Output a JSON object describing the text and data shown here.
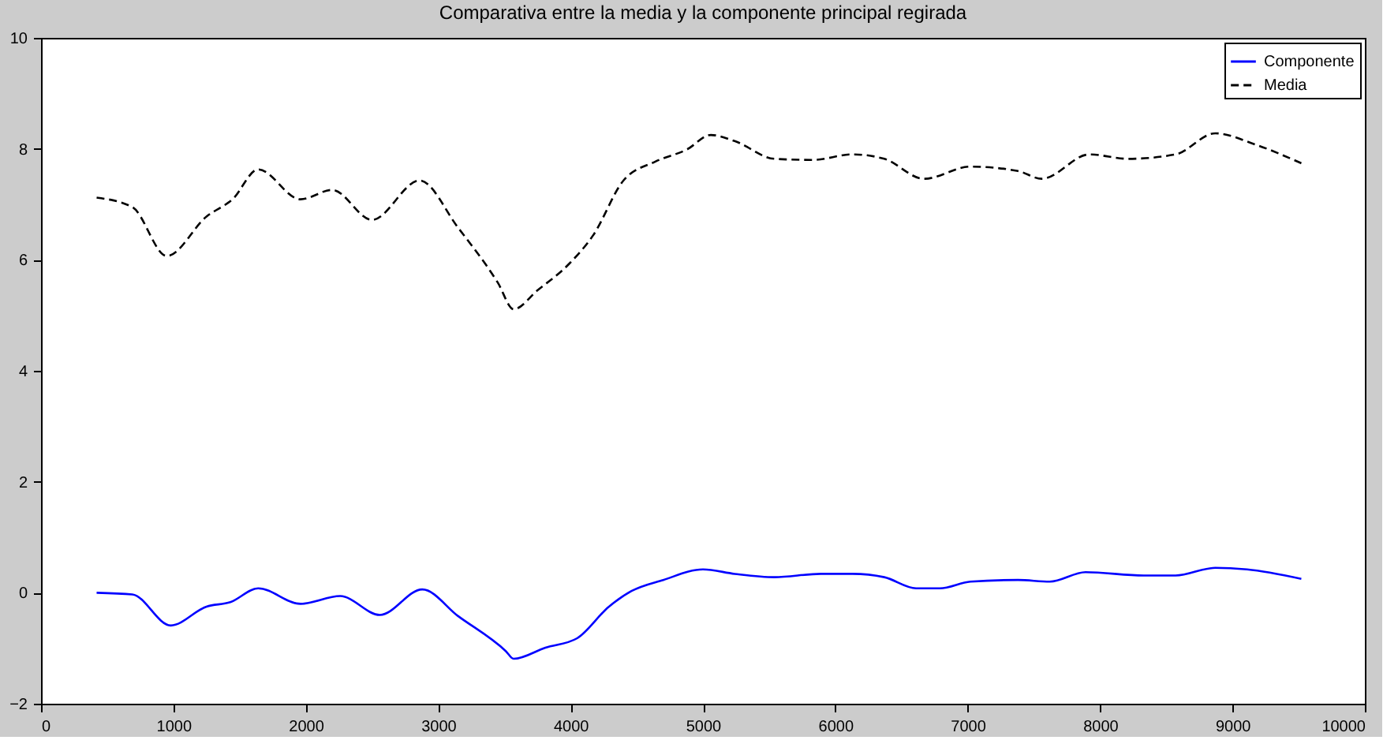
{
  "chart_data": {
    "type": "line",
    "title": "Comparativa entre la media y la componente principal regirada",
    "xlim": [
      0,
      10000
    ],
    "xticks": [
      0,
      1000,
      2000,
      3000,
      4000,
      5000,
      6000,
      7000,
      8000,
      9000,
      10000
    ],
    "ylim": [
      -2,
      10
    ],
    "yticks": [
      -2,
      0,
      2,
      4,
      6,
      8,
      10
    ],
    "grid": false,
    "legend": "top right",
    "series": [
      {
        "name": "Componente",
        "color": "#0000ff",
        "line_style": "solid",
        "x": [
          420,
          690,
          980,
          1250,
          1430,
          1640,
          1960,
          2260,
          2560,
          2880,
          3150,
          3510,
          3570,
          3810,
          4050,
          4290,
          4460,
          4700,
          5000,
          5240,
          5540,
          5890,
          6130,
          6370,
          6610,
          6790,
          7020,
          7380,
          7620,
          7890,
          8330,
          8570,
          8870,
          9110,
          9520
        ],
        "values": [
          0.0,
          -0.03,
          -0.59,
          -0.25,
          -0.17,
          0.08,
          -0.2,
          -0.06,
          -0.4,
          0.06,
          -0.42,
          -1.05,
          -1.19,
          -0.99,
          -0.82,
          -0.25,
          0.03,
          0.23,
          0.42,
          0.34,
          0.28,
          0.34,
          0.34,
          0.28,
          0.08,
          0.08,
          0.2,
          0.23,
          0.2,
          0.37,
          0.31,
          0.31,
          0.45,
          0.42,
          0.25
        ]
      },
      {
        "name": "Media",
        "color": "#000000",
        "line_style": "dashed",
        "x": [
          420,
          690,
          950,
          1250,
          1450,
          1640,
          1960,
          2200,
          2500,
          2860,
          3150,
          3450,
          3570,
          3750,
          3990,
          4170,
          4400,
          4640,
          4880,
          5060,
          5240,
          5540,
          5830,
          6130,
          6370,
          6670,
          7020,
          7380,
          7560,
          7920,
          8210,
          8570,
          8870,
          9170,
          9520
        ],
        "values": [
          7.12,
          6.95,
          6.07,
          6.78,
          7.1,
          7.63,
          7.09,
          7.26,
          6.72,
          7.43,
          6.58,
          5.59,
          5.11,
          5.45,
          5.93,
          6.44,
          7.43,
          7.77,
          7.99,
          8.25,
          8.14,
          7.82,
          7.8,
          7.9,
          7.82,
          7.46,
          7.68,
          7.6,
          7.46,
          7.9,
          7.82,
          7.9,
          8.28,
          8.08,
          7.74
        ]
      }
    ]
  }
}
